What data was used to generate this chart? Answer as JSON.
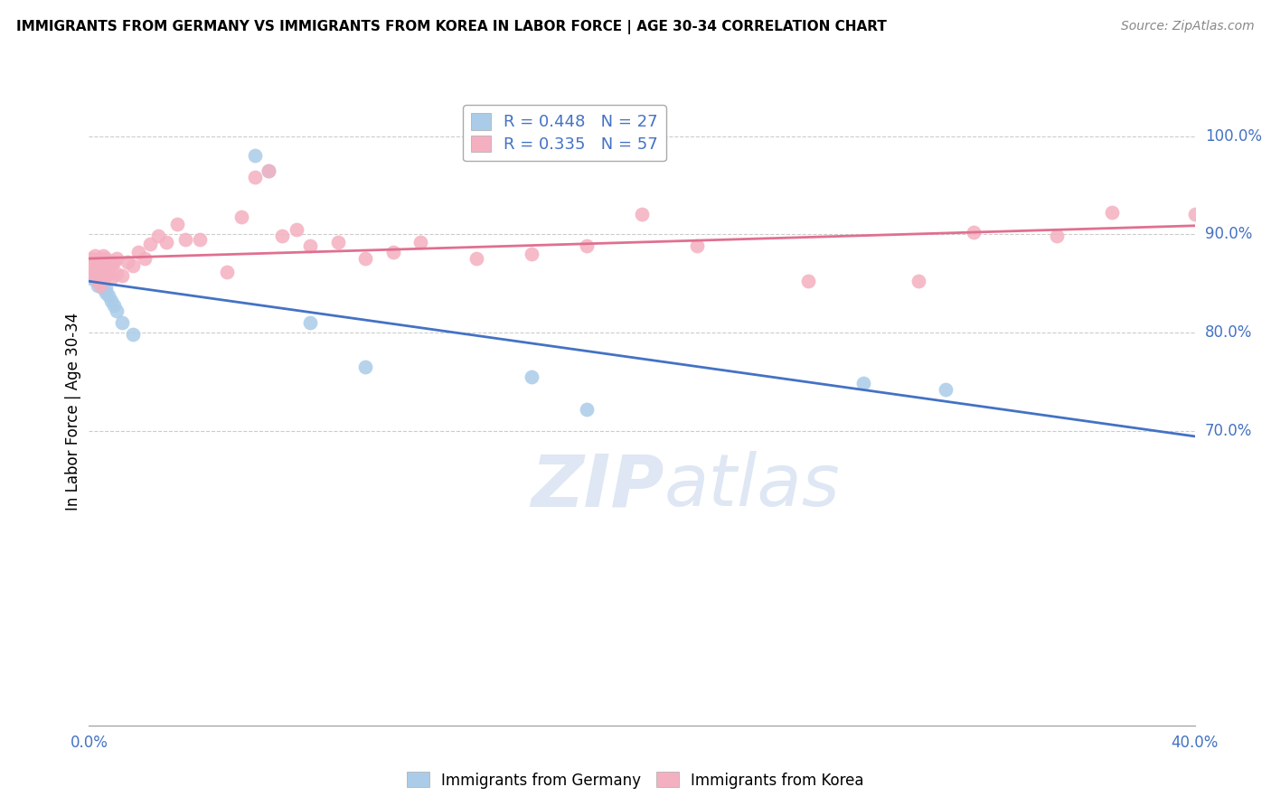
{
  "title": "IMMIGRANTS FROM GERMANY VS IMMIGRANTS FROM KOREA IN LABOR FORCE | AGE 30-34 CORRELATION CHART",
  "source": "Source: ZipAtlas.com",
  "ylabel": "In Labor Force | Age 30-34",
  "xlim": [
    0.0,
    0.4
  ],
  "ylim": [
    0.4,
    1.04
  ],
  "xtick_pos": [
    0.0,
    0.08,
    0.16,
    0.24,
    0.32,
    0.4
  ],
  "xticklabels": [
    "0.0%",
    "",
    "",
    "",
    "",
    "40.0%"
  ],
  "yticks_right": [
    0.7,
    0.8,
    0.9,
    1.0
  ],
  "ytick_right_labels": [
    "70.0%",
    "80.0%",
    "90.0%",
    "100.0%"
  ],
  "germany_R": 0.448,
  "germany_N": 27,
  "korea_R": 0.335,
  "korea_N": 57,
  "germany_color": "#aacce8",
  "korea_color": "#f4b0c0",
  "germany_line_color": "#4472c4",
  "korea_line_color": "#e07090",
  "watermark_zip": "ZIP",
  "watermark_atlas": "atlas",
  "watermark_color_zip": "#c8d8ec",
  "watermark_color_atlas": "#c8d8ec",
  "germany_x": [
    0.001,
    0.001,
    0.002,
    0.002,
    0.003,
    0.003,
    0.004,
    0.004,
    0.005,
    0.005,
    0.005,
    0.006,
    0.006,
    0.007,
    0.008,
    0.009,
    0.01,
    0.012,
    0.016,
    0.06,
    0.065,
    0.08,
    0.1,
    0.16,
    0.18,
    0.28,
    0.31
  ],
  "germany_y": [
    0.855,
    0.86,
    0.858,
    0.855,
    0.852,
    0.848,
    0.855,
    0.85,
    0.852,
    0.848,
    0.845,
    0.845,
    0.84,
    0.838,
    0.832,
    0.828,
    0.822,
    0.81,
    0.798,
    0.98,
    0.965,
    0.81,
    0.765,
    0.755,
    0.722,
    0.748,
    0.742
  ],
  "korea_x": [
    0.001,
    0.001,
    0.001,
    0.002,
    0.002,
    0.002,
    0.003,
    0.003,
    0.003,
    0.003,
    0.004,
    0.004,
    0.004,
    0.005,
    0.005,
    0.006,
    0.006,
    0.007,
    0.007,
    0.008,
    0.008,
    0.009,
    0.01,
    0.01,
    0.012,
    0.014,
    0.016,
    0.018,
    0.02,
    0.022,
    0.025,
    0.028,
    0.032,
    0.035,
    0.04,
    0.05,
    0.055,
    0.06,
    0.065,
    0.07,
    0.075,
    0.08,
    0.09,
    0.1,
    0.11,
    0.12,
    0.14,
    0.16,
    0.18,
    0.2,
    0.22,
    0.26,
    0.3,
    0.32,
    0.35,
    0.37,
    0.4
  ],
  "korea_y": [
    0.87,
    0.862,
    0.875,
    0.878,
    0.862,
    0.858,
    0.872,
    0.865,
    0.858,
    0.852,
    0.875,
    0.865,
    0.848,
    0.878,
    0.855,
    0.875,
    0.858,
    0.872,
    0.862,
    0.868,
    0.855,
    0.872,
    0.875,
    0.86,
    0.858,
    0.872,
    0.868,
    0.882,
    0.875,
    0.89,
    0.898,
    0.892,
    0.91,
    0.895,
    0.895,
    0.862,
    0.918,
    0.958,
    0.965,
    0.898,
    0.905,
    0.888,
    0.892,
    0.875,
    0.882,
    0.892,
    0.875,
    0.88,
    0.888,
    0.92,
    0.888,
    0.852,
    0.852,
    0.902,
    0.898,
    0.922,
    0.92
  ]
}
